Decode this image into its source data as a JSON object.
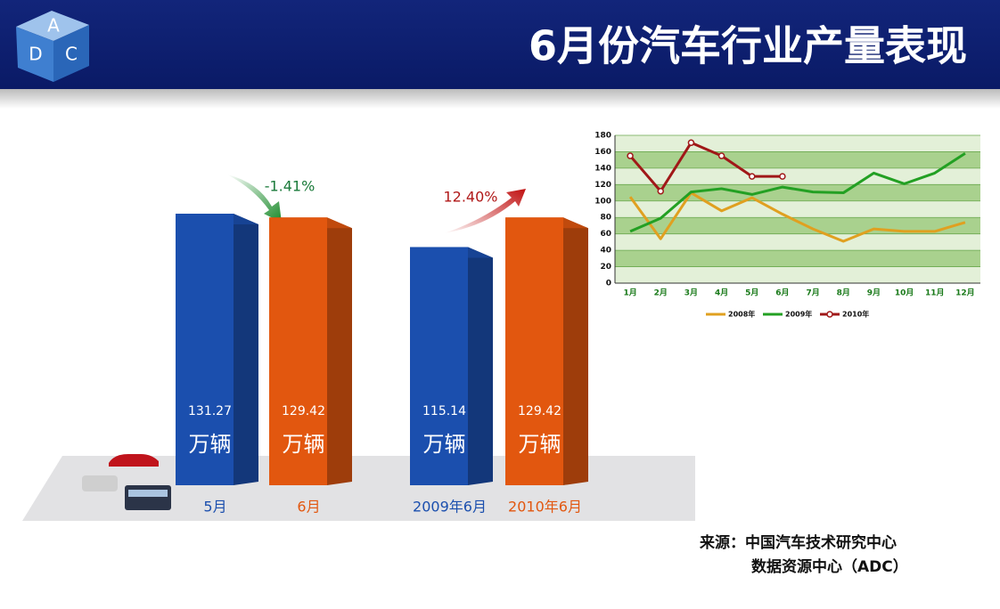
{
  "header": {
    "title": "6月份汽车行业产量表现",
    "logo": [
      "A",
      "D",
      "C"
    ]
  },
  "source": [
    "来源：中国汽车技术研究中心",
    "数据资源中心（ADC）"
  ],
  "chart_data": [
    {
      "type": "bar3d",
      "categories": [
        "5月",
        "6月",
        "2009年6月",
        "2010年6月"
      ],
      "values": [
        131.27,
        129.42,
        115.14,
        129.42
      ],
      "unit": "万辆",
      "colors": [
        "#1b4fae",
        "#e2570f",
        "#1b4fae",
        "#e2570f"
      ],
      "annotations": [
        "-1.41%",
        "12.40%"
      ],
      "annotation_colors": [
        "#1a7a3a",
        "#b01818"
      ]
    },
    {
      "type": "line",
      "categories": [
        "1月",
        "2月",
        "3月",
        "4月",
        "5月",
        "6月",
        "7月",
        "8月",
        "9月",
        "10月",
        "11月",
        "12月"
      ],
      "series": [
        {
          "name": "2008年",
          "color": "#e0a020",
          "values": [
            105,
            54,
            110,
            88,
            104,
            84,
            66,
            51,
            66,
            63,
            63,
            74
          ]
        },
        {
          "name": "2009年",
          "color": "#23a023",
          "values": [
            63,
            79,
            111,
            115,
            108,
            117,
            111,
            110,
            134,
            121,
            134,
            158
          ]
        },
        {
          "name": "2010年",
          "color": "#a01818",
          "marker": "circle",
          "values": [
            155,
            112,
            171,
            155,
            130,
            130,
            null,
            null,
            null,
            null,
            null,
            null
          ]
        }
      ],
      "ylim": [
        0,
        180
      ],
      "yticks": [
        0,
        20,
        40,
        60,
        80,
        100,
        120,
        140,
        160,
        180
      ],
      "grid": true
    }
  ]
}
